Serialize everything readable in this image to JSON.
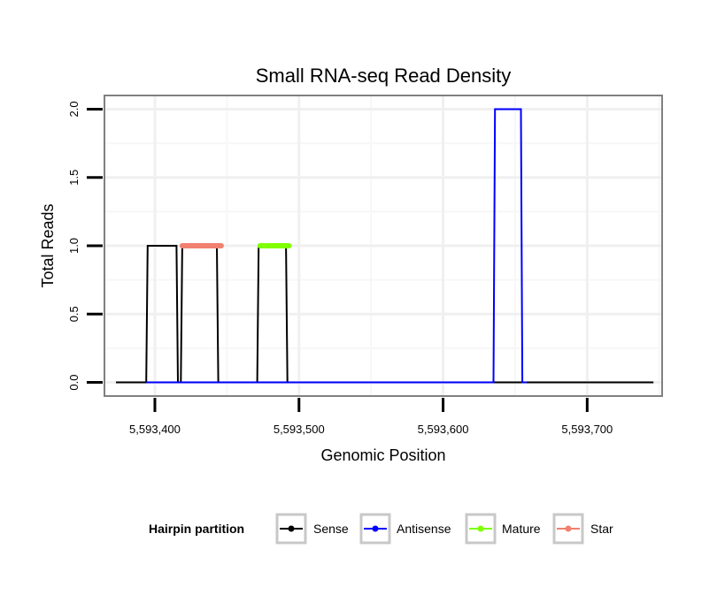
{
  "chart_data": {
    "type": "line",
    "title": "Small RNA-seq Read Density",
    "xlabel": "Genomic Position",
    "ylabel": "Total Reads",
    "xlim": [
      5593365,
      5593752
    ],
    "ylim": [
      -0.1,
      2.1
    ],
    "x_ticks": [
      5593400,
      5593500,
      5593600,
      5593700
    ],
    "x_tick_labels": [
      "5,593,400",
      "5,593,500",
      "5,593,600",
      "5,593,700"
    ],
    "y_ticks": [
      0,
      0.5,
      1,
      1.5,
      2
    ],
    "y_tick_labels": [
      "0.0",
      "0.5",
      "1.0",
      "1.5",
      "2.0"
    ],
    "grid": true,
    "legend_position": "bottom",
    "legend_title": "Hairpin partition",
    "series": [
      {
        "name": "Sense",
        "color": "#000000",
        "width": 2,
        "points": [
          [
            5593373,
            0
          ],
          [
            5593394,
            0
          ],
          [
            5593395,
            1
          ],
          [
            5593415,
            1
          ],
          [
            5593416,
            0
          ],
          [
            5593418,
            0
          ],
          [
            5593419,
            1
          ],
          [
            5593443,
            1
          ],
          [
            5593444,
            0
          ],
          [
            5593471,
            0
          ],
          [
            5593472,
            1
          ],
          [
            5593491,
            1
          ],
          [
            5593492,
            0
          ],
          [
            5593746,
            0
          ]
        ]
      },
      {
        "name": "Antisense",
        "color": "#0000ff",
        "width": 2,
        "points": [
          [
            5593394,
            0
          ],
          [
            5593635,
            0
          ],
          [
            5593636,
            2
          ],
          [
            5593654,
            2
          ],
          [
            5593655,
            0
          ],
          [
            5593658,
            0
          ]
        ]
      },
      {
        "name": "Mature",
        "color": "#7fff00",
        "width": 6,
        "points": [
          [
            5593473,
            1
          ],
          [
            5593493,
            1
          ]
        ]
      },
      {
        "name": "Star",
        "color": "#f08070",
        "width": 6,
        "points": [
          [
            5593419,
            1
          ],
          [
            5593446,
            1
          ]
        ]
      }
    ]
  }
}
